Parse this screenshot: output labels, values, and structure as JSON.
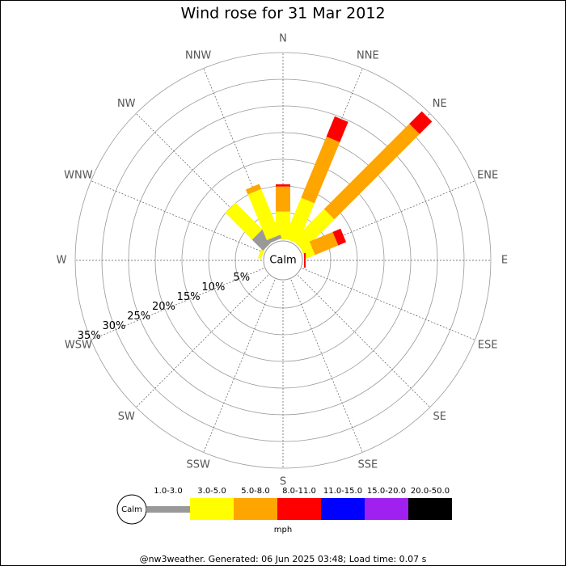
{
  "chart_data": {
    "type": "windrose",
    "title": "Wind rose for 31 Mar 2012",
    "categories": [
      "N",
      "NNE",
      "NE",
      "ENE",
      "E",
      "ESE",
      "SE",
      "SSE",
      "S",
      "SSW",
      "SW",
      "WSW",
      "W",
      "WNW",
      "NW",
      "NNW"
    ],
    "series": [
      {
        "name": "1.0-3.0",
        "color": "#999999",
        "values": [
          0,
          0,
          0,
          0,
          0,
          0,
          0,
          0,
          0,
          0,
          0,
          0,
          0,
          0,
          2.9,
          0.7
        ]
      },
      {
        "name": "3.0-5.0",
        "color": "#ffff00",
        "values": [
          5.2,
          8.2,
          8.3,
          2,
          0,
          0,
          0,
          0,
          0,
          0,
          0,
          0,
          0,
          0.6,
          7.1,
          9.3
        ]
      },
      {
        "name": "5.0-8.0",
        "color": "#ffa500",
        "values": [
          4.7,
          12.4,
          22.6,
          4.7,
          0,
          0,
          0,
          0,
          0,
          0,
          0,
          0,
          0,
          0,
          0,
          1
        ]
      },
      {
        "name": "8.0-11.0",
        "color": "#ff0000",
        "values": [
          0.4,
          4.1,
          3.3,
          1.6,
          0.3,
          0,
          0,
          0,
          0,
          0,
          0,
          0,
          0,
          0,
          0,
          0
        ]
      },
      {
        "name": "11.0-15.0",
        "color": "#0000ff",
        "values": [
          0,
          0,
          0,
          0,
          0,
          0,
          0,
          0,
          0,
          0,
          0,
          0,
          0,
          0,
          0,
          0
        ]
      },
      {
        "name": "15.0-20.0",
        "color": "#a020f0",
        "values": [
          0,
          0,
          0,
          0,
          0,
          0,
          0,
          0,
          0,
          0,
          0,
          0,
          0,
          0,
          0,
          0
        ]
      },
      {
        "name": "20.0-50.0",
        "color": "#000000",
        "values": [
          0,
          0,
          0,
          0,
          0,
          0,
          0,
          0,
          0,
          0,
          0,
          0,
          0,
          0,
          0,
          0
        ]
      }
    ],
    "rlim": [
      0,
      35
    ],
    "rticks": [
      {
        "value": 5,
        "label": "5%"
      },
      {
        "value": 10,
        "label": "10%"
      },
      {
        "value": 15,
        "label": "15%"
      },
      {
        "value": 20,
        "label": "20%"
      },
      {
        "value": 25,
        "label": "25%"
      },
      {
        "value": 30,
        "label": "30%"
      },
      {
        "value": 35,
        "label": "35%"
      }
    ],
    "calm_label": "Calm",
    "units": "mph",
    "footer": "@nw3weather. Generated: 06 Jun 2025 03:48; Load time: 0.07 s"
  }
}
